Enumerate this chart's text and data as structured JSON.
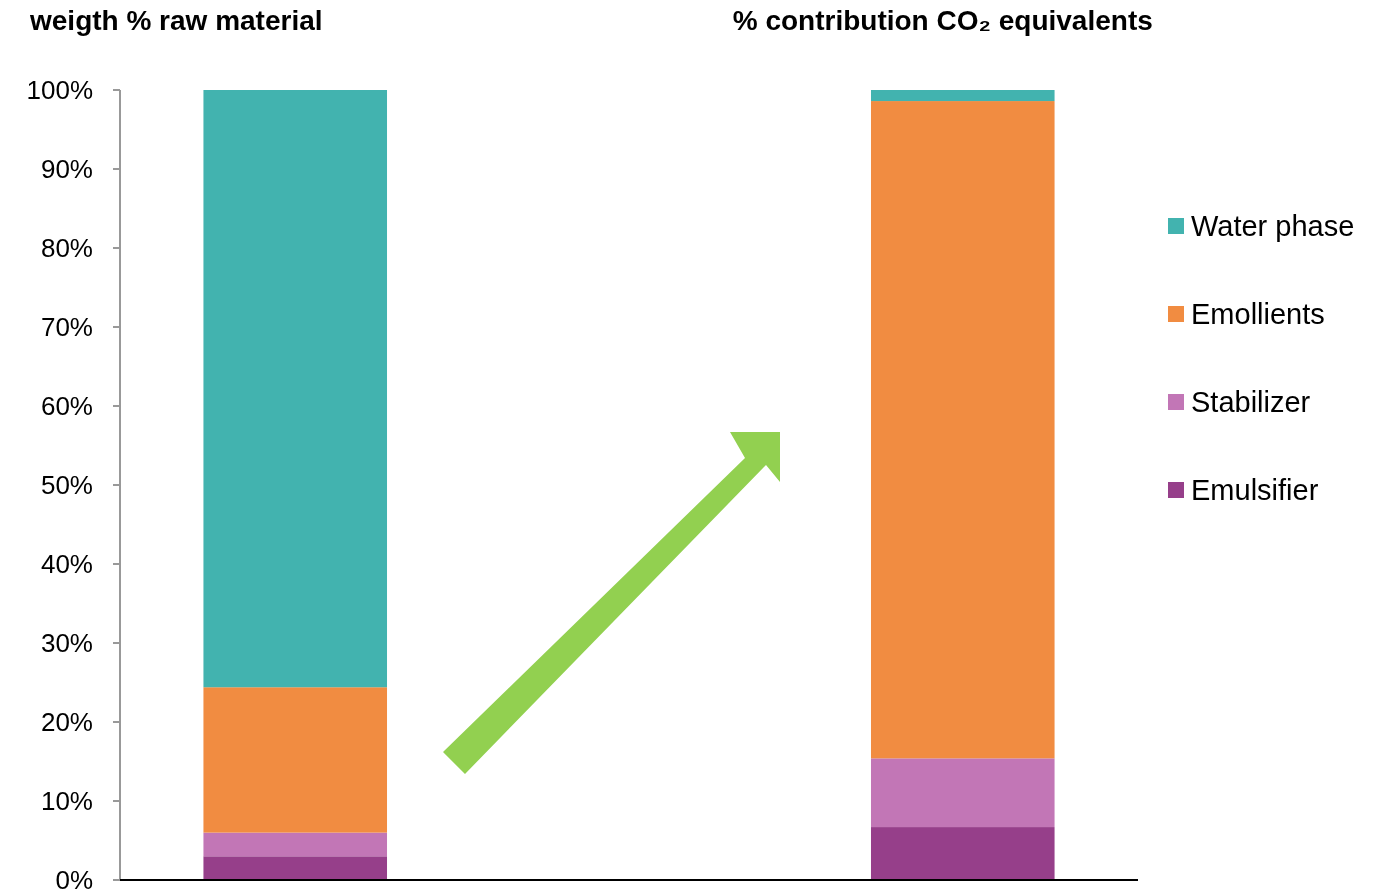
{
  "chart_data": {
    "type": "bar",
    "stacked": true,
    "categories": [
      null,
      null,
      null
    ],
    "series": [
      {
        "name": "Emulsifier",
        "color": "#963f8a",
        "values": [
          3,
          null,
          6.7
        ]
      },
      {
        "name": "Stabilizer",
        "color": "#c276b6",
        "values": [
          3,
          null,
          8.7
        ]
      },
      {
        "name": "Emollients",
        "color": "#f18c41",
        "values": [
          18.4,
          null,
          83.2
        ]
      },
      {
        "name": "Water phase",
        "color": "#42b3af",
        "values": [
          75.6,
          null,
          1.4
        ]
      }
    ],
    "ylim": [
      0,
      100
    ],
    "yticks": [
      {
        "value": 0,
        "label": "0%"
      },
      {
        "value": 10,
        "label": "10%"
      },
      {
        "value": 20,
        "label": "20%"
      },
      {
        "value": 30,
        "label": "30%"
      },
      {
        "value": 40,
        "label": "40%"
      },
      {
        "value": 50,
        "label": "50%"
      },
      {
        "value": 60,
        "label": "60%"
      },
      {
        "value": 70,
        "label": "70%"
      },
      {
        "value": 80,
        "label": "80%"
      },
      {
        "value": 90,
        "label": "90%"
      },
      {
        "value": 100,
        "label": "100%"
      }
    ],
    "legend": "right",
    "annotations": [
      "weigth % raw material",
      "% contribution CO₂ equivalents"
    ]
  }
}
